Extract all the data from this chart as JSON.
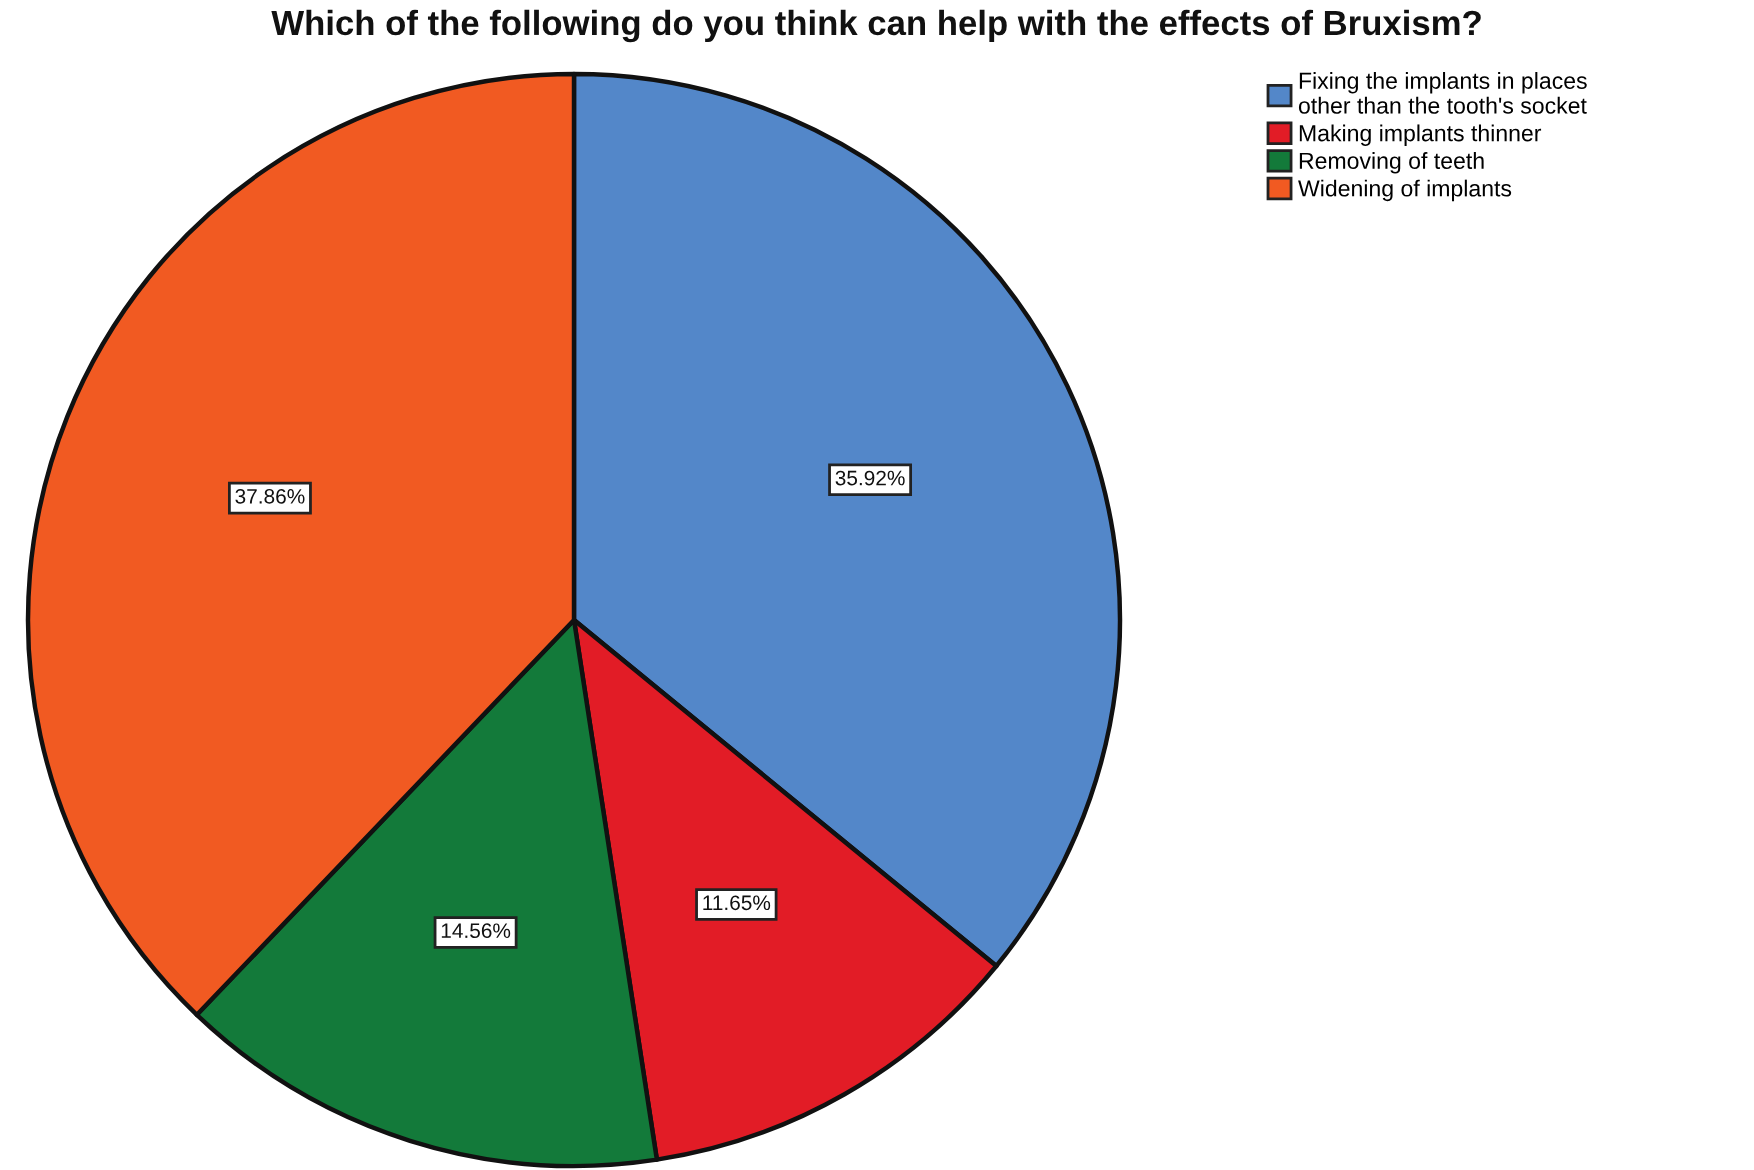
{
  "chart_data": {
    "type": "pie",
    "title": "Which of the following do you think can help with the effects of Bruxism?",
    "categories": [
      "Fixing the implants in places\nother than the tooth's socket",
      "Making implants thinner",
      "Removing of teeth",
      "Widening of implants"
    ],
    "values": [
      35.92,
      11.65,
      14.56,
      37.86
    ],
    "colors": [
      "#5387c9",
      "#e21c26",
      "#137a3a",
      "#f15a22"
    ],
    "value_labels": [
      "35.92%",
      "11.65%",
      "14.56%",
      "37.86%"
    ],
    "legend": "top right"
  }
}
